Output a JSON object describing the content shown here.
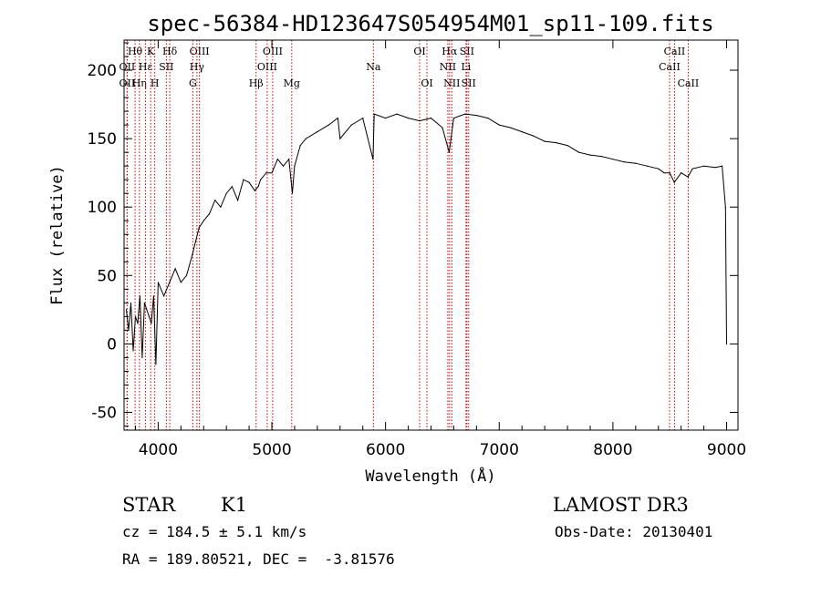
{
  "chart_data": {
    "type": "line",
    "title": "spec-56384-HD123647S054954M01_sp11-109.fits",
    "xlabel": "Wavelength (Å)",
    "ylabel": "Flux (relative)",
    "xlim": [
      3700,
      9100
    ],
    "ylim": [
      -63,
      222
    ],
    "x_ticks": [
      4000,
      5000,
      6000,
      7000,
      8000,
      9000
    ],
    "y_ticks": [
      -50,
      0,
      50,
      100,
      150,
      200
    ],
    "grid": false,
    "line_color": "#000000",
    "marker_color": "#cc0000",
    "series": [
      {
        "x": [
          3720,
          3740,
          3760,
          3780,
          3800,
          3820,
          3840,
          3860,
          3880,
          3900,
          3920,
          3940,
          3960,
          3980,
          4000,
          4050,
          4100,
          4150,
          4200,
          4250,
          4300,
          4330,
          4360,
          4400,
          4450,
          4500,
          4550,
          4600,
          4650,
          4700,
          4750,
          4800,
          4850,
          4880,
          4900,
          4950,
          5000,
          5050,
          5100,
          5150,
          5180,
          5200,
          5250,
          5300,
          5400,
          5500,
          5580,
          5600,
          5700,
          5800,
          5890,
          5900,
          6000,
          6100,
          6200,
          6300,
          6400,
          6500,
          6560,
          6600,
          6700,
          6800,
          6900,
          7000,
          7100,
          7200,
          7300,
          7400,
          7500,
          7600,
          7700,
          7800,
          7900,
          8000,
          8100,
          8200,
          8300,
          8400,
          8450,
          8500,
          8540,
          8600,
          8660,
          8700,
          8800,
          8900,
          8960,
          8990,
          9000
        ],
        "y": [
          25,
          10,
          30,
          -5,
          20,
          15,
          35,
          -10,
          30,
          25,
          20,
          15,
          35,
          -15,
          45,
          35,
          45,
          55,
          45,
          50,
          65,
          75,
          85,
          90,
          95,
          105,
          100,
          110,
          115,
          105,
          120,
          118,
          112,
          115,
          120,
          125,
          125,
          135,
          130,
          135,
          110,
          130,
          145,
          150,
          155,
          160,
          165,
          150,
          160,
          165,
          135,
          168,
          165,
          168,
          165,
          163,
          165,
          158,
          140,
          165,
          168,
          167,
          165,
          160,
          158,
          155,
          152,
          148,
          147,
          145,
          140,
          138,
          137,
          135,
          133,
          132,
          130,
          128,
          125,
          125,
          118,
          125,
          122,
          128,
          130,
          129,
          130,
          100,
          0
        ]
      }
    ],
    "spectral_lines": [
      {
        "name": "Hθ",
        "x": 3797,
        "row": 1
      },
      {
        "name": "OII",
        "x": 3727,
        "row": 2
      },
      {
        "name": "OII",
        "x": 3727,
        "row": 3
      },
      {
        "name": "Hη",
        "x": 3835,
        "row": 3
      },
      {
        "name": "Hε",
        "x": 3889,
        "row": 2
      },
      {
        "name": "K",
        "x": 3934,
        "row": 1
      },
      {
        "name": "H",
        "x": 3970,
        "row": 3
      },
      {
        "name": "SII",
        "x": 4072,
        "row": 2
      },
      {
        "name": "Hδ",
        "x": 4102,
        "row": 1
      },
      {
        "name": "OIII",
        "x": 4363,
        "row": 1
      },
      {
        "name": "Hγ",
        "x": 4341,
        "row": 2
      },
      {
        "name": "G",
        "x": 4305,
        "row": 3
      },
      {
        "name": "Hβ",
        "x": 4861,
        "row": 3
      },
      {
        "name": "OIII",
        "x": 5007,
        "row": 1
      },
      {
        "name": "OIII",
        "x": 4959,
        "row": 2
      },
      {
        "name": "Mg",
        "x": 5175,
        "row": 3
      },
      {
        "name": "Na",
        "x": 5893,
        "row": 2
      },
      {
        "name": "OI",
        "x": 6300,
        "row": 1
      },
      {
        "name": "OI",
        "x": 6364,
        "row": 3
      },
      {
        "name": "Hα",
        "x": 6563,
        "row": 1
      },
      {
        "name": "NII",
        "x": 6548,
        "row": 2
      },
      {
        "name": "NII",
        "x": 6583,
        "row": 3
      },
      {
        "name": "SII",
        "x": 6716,
        "row": 1
      },
      {
        "name": "SII",
        "x": 6731,
        "row": 3
      },
      {
        "name": "Li",
        "x": 6708,
        "row": 2
      },
      {
        "name": "CaII",
        "x": 8542,
        "row": 1
      },
      {
        "name": "CaII",
        "x": 8498,
        "row": 2
      },
      {
        "name": "CaII",
        "x": 8662,
        "row": 3
      }
    ]
  },
  "info": {
    "class": "STAR",
    "subclass": "K1",
    "survey": "LAMOST DR3",
    "cz": "cz = 184.5 ± 5.1 km/s",
    "obs_date": "Obs-Date: 20130401",
    "radec": "RA = 189.80521, DEC =  -3.81576"
  }
}
